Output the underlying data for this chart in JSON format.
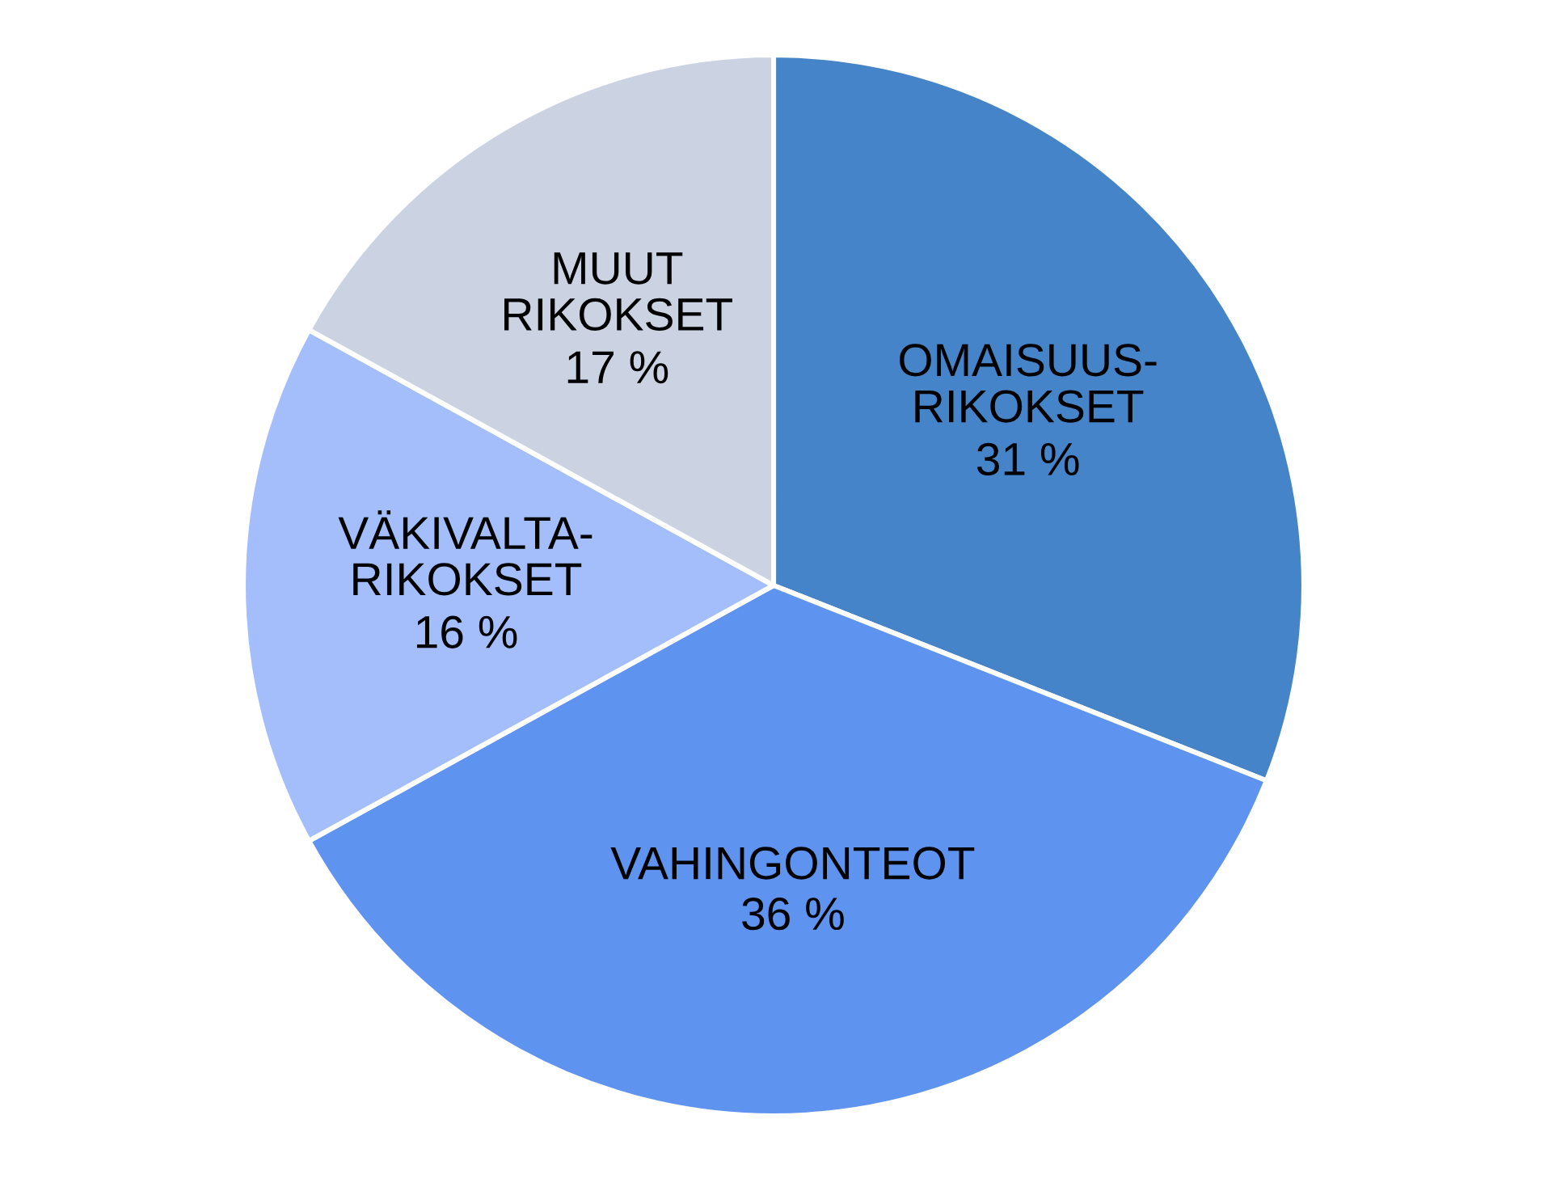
{
  "chart_data": {
    "type": "pie",
    "categories": [
      "OMAISUUS-\nRIKOKSET",
      "VAHINGONTEOT",
      "VÄKIVALTA-\nRIKOKSET",
      "MUUT\nRIKOKSET"
    ],
    "values": [
      31,
      36,
      16,
      17
    ],
    "colors": [
      "#4584c8",
      "#5f93f0",
      "#a3befa",
      "#cbd3e2"
    ],
    "value_labels": [
      "31 %",
      "36 %",
      "16 %",
      "17 %"
    ]
  }
}
